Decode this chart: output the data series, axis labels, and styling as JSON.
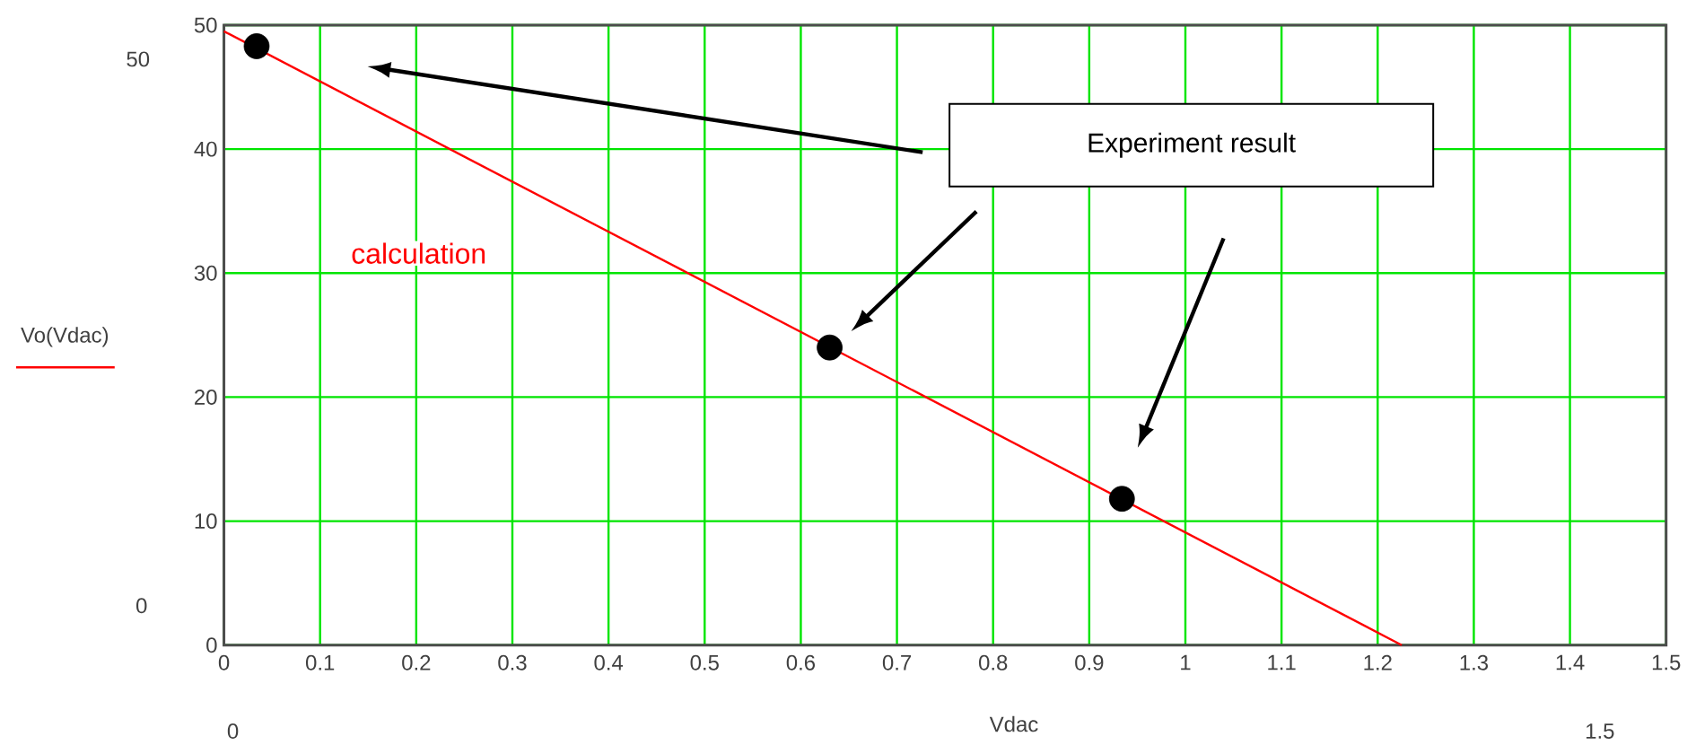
{
  "chart_data": {
    "type": "line",
    "xlabel": "Vdac",
    "ylabel": "Vo(Vdac)",
    "xlim": [
      0,
      1.5
    ],
    "ylim": [
      0,
      50
    ],
    "xticks": [
      0,
      0.1,
      0.2,
      0.3,
      0.4,
      0.5,
      0.6,
      0.7,
      0.8,
      0.9,
      1,
      1.1,
      1.2,
      1.3,
      1.4,
      1.5
    ],
    "yticks": [
      0,
      10,
      20,
      30,
      40,
      50
    ],
    "grid": true,
    "series": [
      {
        "name": "calculation",
        "color": "#ff0000",
        "marker": "none",
        "x": [
          0,
          1.225
        ],
        "values": [
          49.5,
          0
        ]
      },
      {
        "type": "scatter",
        "color": "#000000",
        "marker": "circle",
        "x": [
          0.034,
          0.63,
          0.934
        ],
        "values": [
          48.3,
          24.0,
          11.8
        ]
      }
    ],
    "annotations": [
      "Experiment result",
      "50",
      "0",
      "0",
      "1.5"
    ]
  }
}
